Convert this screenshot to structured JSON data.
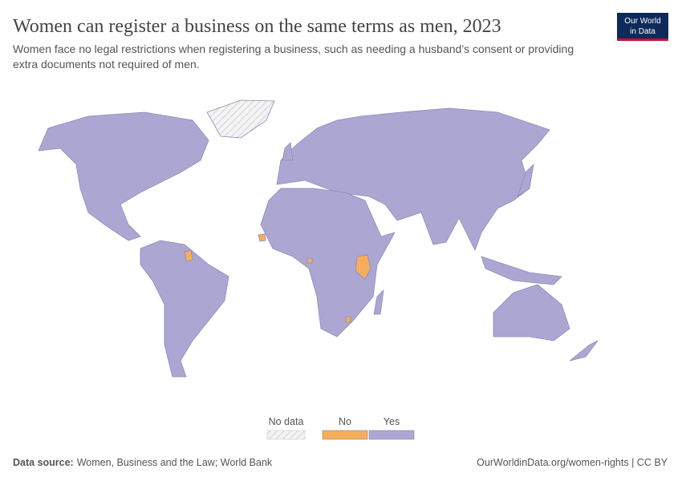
{
  "header": {
    "title": "Women can register a business on the same terms as men, 2023",
    "subtitle_lines": [
      "Women face no legal restrictions when registering a business, such as needing a husband’s consent or providing",
      "extra documents not required of men."
    ]
  },
  "logo": {
    "lines": [
      "Our World",
      "in Data"
    ]
  },
  "legend": {
    "items": [
      {
        "label": "No data",
        "color": "#f2f2f2",
        "pattern": "hatch"
      },
      {
        "label": "No",
        "color": "#f6ad5c"
      },
      {
        "label": "Yes",
        "color": "#aca7d2"
      }
    ]
  },
  "footer": {
    "source_label": "Data source:",
    "source": "Women, Business and the Law; World Bank",
    "url": "OurWorldinData.org/women-rights | CC BY"
  }
}
